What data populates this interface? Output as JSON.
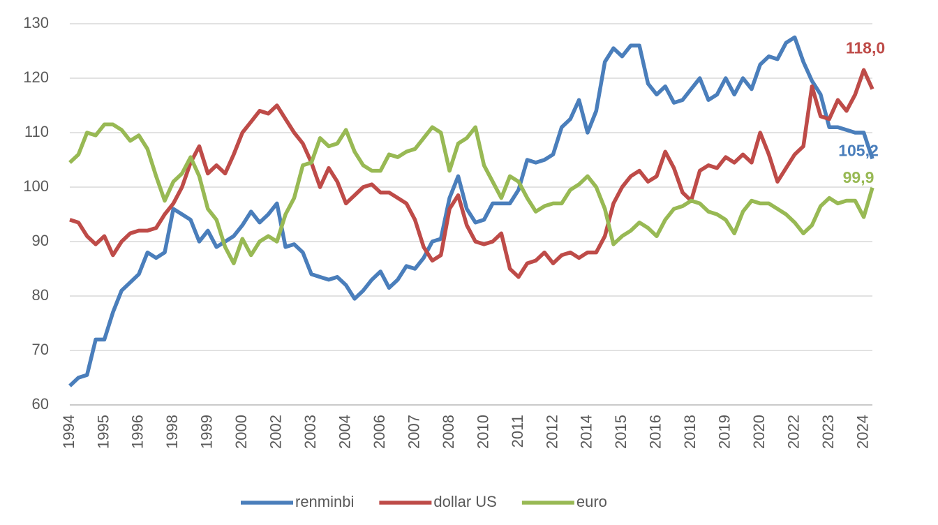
{
  "chart_data": {
    "type": "line",
    "categories": [
      "1994",
      null,
      null,
      null,
      "1995",
      null,
      null,
      null,
      "1996",
      null,
      null,
      null,
      "1998",
      null,
      null,
      null,
      "1999",
      null,
      null,
      null,
      "2000",
      null,
      null,
      null,
      "2002",
      null,
      null,
      null,
      "2003",
      null,
      null,
      null,
      "2004",
      null,
      null,
      null,
      "2006",
      null,
      null,
      null,
      "2007",
      null,
      null,
      null,
      "2008",
      null,
      null,
      null,
      "2010",
      null,
      null,
      null,
      "2011",
      null,
      null,
      null,
      "2012",
      null,
      null,
      null,
      "2014",
      null,
      null,
      null,
      "2015",
      null,
      null,
      null,
      "2016",
      null,
      null,
      null,
      "2018",
      null,
      null,
      null,
      "2019",
      null,
      null,
      null,
      "2020",
      null,
      null,
      null,
      "2022",
      null,
      null,
      null,
      "2023",
      null,
      null,
      null,
      "2024",
      null
    ],
    "series": [
      {
        "name": "renminbi",
        "color": "#4a7ebb",
        "values": [
          63.5,
          65,
          65.5,
          72,
          72,
          77,
          81,
          82.5,
          84,
          88,
          87,
          88,
          96,
          95,
          94,
          90,
          92,
          89,
          90,
          91,
          93,
          95.5,
          93.5,
          95,
          97,
          89,
          89.5,
          88,
          84,
          83.5,
          83,
          83.5,
          82,
          79.5,
          81,
          83,
          84.5,
          81.5,
          83,
          85.5,
          85,
          87,
          90,
          90.5,
          98,
          102,
          96,
          93.5,
          94,
          97,
          97,
          97,
          99.5,
          105,
          104.5,
          105,
          106,
          111,
          112.5,
          116,
          110,
          114,
          123,
          125.5,
          124,
          126,
          126,
          119,
          117,
          118.5,
          115.5,
          116,
          118,
          120,
          116,
          117,
          120,
          117,
          120,
          118,
          122.5,
          124,
          123.5,
          126.5,
          127.5,
          123,
          119.5,
          117,
          111,
          111,
          110.5,
          110,
          110,
          105.2
        ],
        "value_labels": {
          "93": "105,2"
        }
      },
      {
        "name": "dollar US",
        "color": "#be4b48",
        "values": [
          94,
          93.5,
          91,
          89.5,
          91,
          87.5,
          90,
          91.5,
          92,
          92,
          92.5,
          95,
          97,
          100,
          104.5,
          107.5,
          102.5,
          104,
          102.5,
          106,
          110,
          112,
          114,
          113.5,
          115,
          112.5,
          110,
          108,
          104.5,
          100,
          103.5,
          101,
          97,
          98.5,
          100,
          100.5,
          99,
          99,
          98,
          97,
          94,
          89,
          86.5,
          87.5,
          96,
          98.5,
          93,
          90,
          89.5,
          90,
          91.5,
          85,
          83.5,
          86,
          86.5,
          88,
          86,
          87.5,
          88,
          87,
          88,
          88,
          91,
          97,
          100,
          102,
          103,
          101,
          102,
          106.5,
          103.5,
          99,
          97.5,
          103,
          104,
          103.5,
          105.5,
          104.5,
          106,
          104.5,
          110,
          106,
          101,
          103.5,
          106,
          107.5,
          118.5,
          113,
          112.5,
          116,
          114,
          117,
          121.5,
          118.0
        ],
        "value_labels": {
          "93": "118,0"
        }
      },
      {
        "name": "euro",
        "color": "#98b954",
        "values": [
          104.5,
          106,
          110,
          109.5,
          111.5,
          111.5,
          110.5,
          108.5,
          109.5,
          107,
          102,
          97.5,
          101,
          102.5,
          105.5,
          102,
          96,
          94,
          89,
          86,
          90.5,
          87.5,
          90,
          91,
          90,
          95,
          98,
          104,
          104.5,
          109,
          107.5,
          108,
          110.5,
          106.5,
          104,
          103,
          103,
          106,
          105.5,
          106.5,
          107,
          109,
          111,
          110,
          103,
          108,
          109,
          111,
          104,
          101,
          98,
          102,
          101,
          98,
          95.5,
          96.5,
          97,
          97,
          99.5,
          100.5,
          102,
          100,
          96,
          89.5,
          91,
          92,
          93.5,
          92.5,
          91,
          94,
          96,
          96.5,
          97.5,
          97,
          95.5,
          95,
          94,
          91.5,
          95.5,
          97.5,
          97,
          97,
          96,
          95,
          93.5,
          91.5,
          93,
          96.5,
          98,
          97,
          97.5,
          97.5,
          94.5,
          99.9
        ],
        "value_labels": {
          "93": "99,9"
        }
      }
    ],
    "ylim": [
      60,
      130
    ],
    "yticks": [
      60,
      70,
      80,
      90,
      100,
      110,
      120,
      130
    ],
    "grid": true,
    "legend": "bottom"
  }
}
